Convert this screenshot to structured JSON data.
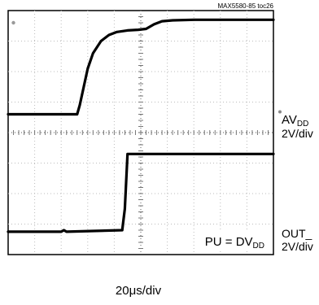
{
  "chart_data": {
    "type": "line",
    "figure_id": "MAX5580-85 toc26",
    "annotation": "PU = DV",
    "annotation_sub": "DD",
    "xlabel_pre": "20",
    "xlabel_unit": "μs/div",
    "grid": true,
    "xdiv": 10,
    "ydiv": 8,
    "xlim": [
      0,
      10
    ],
    "ylim": [
      0,
      8
    ],
    "series": [
      {
        "name": "AV",
        "name_sub": "DD",
        "scale": "2V/div",
        "x": [
          0,
          2.6,
          2.7,
          2.85,
          3.0,
          3.2,
          3.5,
          3.8,
          4.1,
          4.5,
          4.9,
          5.2,
          5.5,
          5.8,
          6.2,
          7.0,
          8.0,
          9.0,
          10
        ],
        "y": [
          4.6,
          4.6,
          4.9,
          5.5,
          6.1,
          6.6,
          7.0,
          7.2,
          7.3,
          7.35,
          7.37,
          7.4,
          7.55,
          7.65,
          7.68,
          7.7,
          7.7,
          7.7,
          7.7
        ]
      },
      {
        "name": "OUT_",
        "name_sub": "",
        "scale": "2V/div",
        "x": [
          0,
          1.9,
          2.0,
          2.1,
          2.2,
          4.3,
          4.4,
          4.5,
          10
        ],
        "y": [
          0.75,
          0.75,
          0.75,
          0.8,
          0.75,
          0.8,
          1.5,
          3.3,
          3.3
        ]
      }
    ]
  }
}
